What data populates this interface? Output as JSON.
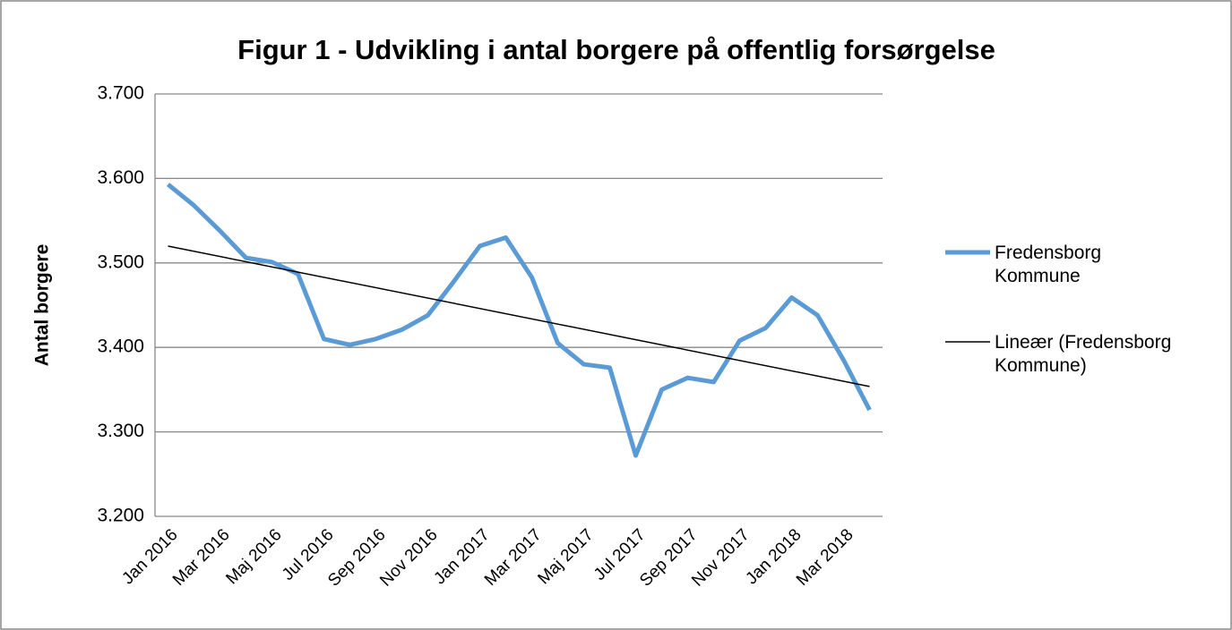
{
  "chart_data": {
    "type": "line",
    "title": "Figur 1 - Udvikling i antal borgere på offentlig forsørgelse",
    "y_label": "Antal borgere",
    "categories": [
      "Jan 2016",
      null,
      "Mar 2016",
      null,
      "Maj 2016",
      null,
      "Jul 2016",
      null,
      "Sep 2016",
      null,
      "Nov 2016",
      null,
      "Jan 2017",
      null,
      "Mar 2017",
      null,
      "Maj 2017",
      null,
      "Jul 2017",
      null,
      "Sep 2017",
      null,
      "Nov 2017",
      null,
      "Jan 2018",
      null,
      "Mar 2018",
      null
    ],
    "series": [
      {
        "name": "Fredensborg Kommune",
        "color": "#5b9bd5",
        "values": [
          3593,
          3568,
          3538,
          3506,
          3501,
          3487,
          3410,
          3403,
          3410,
          3421,
          3438,
          3478,
          3520,
          3530,
          3483,
          3405,
          3380,
          3376,
          3272,
          3350,
          3364,
          3359,
          3408,
          3423,
          3459,
          3438,
          3385,
          3326
        ]
      }
    ],
    "trendline": {
      "name": "Lineær (Fredensborg Kommune)",
      "color": "#000000",
      "type": "linear"
    },
    "ylim": [
      3200,
      3700
    ],
    "yticks": [
      {
        "value": 3200,
        "label": "3.200"
      },
      {
        "value": 3300,
        "label": "3.300"
      },
      {
        "value": 3400,
        "label": "3.400"
      },
      {
        "value": 3500,
        "label": "3.500"
      },
      {
        "value": 3600,
        "label": "3.600"
      },
      {
        "value": 3700,
        "label": "3.700"
      }
    ],
    "grid": true,
    "legend": "right"
  }
}
